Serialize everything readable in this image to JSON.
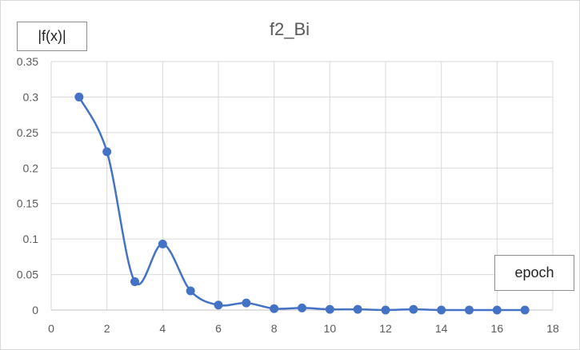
{
  "chart_data": {
    "type": "line",
    "title": "f2_Bi",
    "xlabel": "epoch",
    "ylabel": "|f(x)|",
    "xlim": [
      0,
      18
    ],
    "ylim": [
      0,
      0.35
    ],
    "x_ticks": [
      "0",
      "2",
      "4",
      "6",
      "8",
      "10",
      "12",
      "14",
      "16",
      "18"
    ],
    "y_ticks": [
      "0",
      "0.05",
      "0.1",
      "0.15",
      "0.2",
      "0.25",
      "0.3",
      "0.35"
    ],
    "grid": true,
    "smooth": true,
    "line_color": "#4472c4",
    "series": [
      {
        "x": [
          1,
          2,
          3,
          4,
          5,
          6,
          7,
          8,
          9,
          10,
          11,
          12,
          13,
          14,
          15,
          16,
          17
        ],
        "values": [
          0.3,
          0.223,
          0.04,
          0.093,
          0.027,
          0.007,
          0.01,
          0.002,
          0.003,
          0.001,
          0.001,
          0.0,
          0.001,
          0.0,
          0.0,
          0.0,
          0.0
        ]
      }
    ]
  }
}
